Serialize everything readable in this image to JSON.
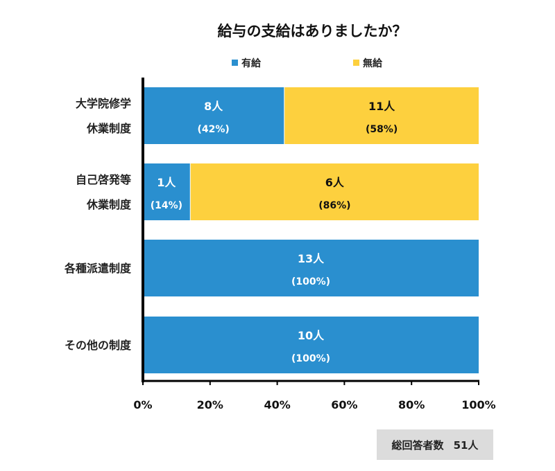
{
  "chart_data": {
    "type": "bar",
    "orientation": "horizontal",
    "stacked": true,
    "title": "給与の支給はありましたか？",
    "categories": [
      [
        "大学院修学",
        "休業制度"
      ],
      [
        "自己啓発等",
        "休業制度"
      ],
      [
        "各種派遣制度"
      ],
      [
        "その他の制度"
      ]
    ],
    "series": [
      {
        "name": "有給",
        "color": "#2a8fcf",
        "counts": [
          8,
          1,
          13,
          10
        ],
        "values": [
          42,
          14,
          100,
          100
        ]
      },
      {
        "name": "無給",
        "color": "#fdd03e",
        "counts": [
          11,
          6,
          0,
          0
        ],
        "values": [
          58,
          86,
          0,
          0
        ]
      }
    ],
    "count_unit": "人",
    "xlim": [
      0,
      100
    ],
    "xticks": [
      "0%",
      "20%",
      "40%",
      "60%",
      "80%",
      "100%"
    ],
    "grid": false,
    "legend": "top"
  },
  "footer": {
    "label": "総回答者数",
    "value": "51人"
  }
}
